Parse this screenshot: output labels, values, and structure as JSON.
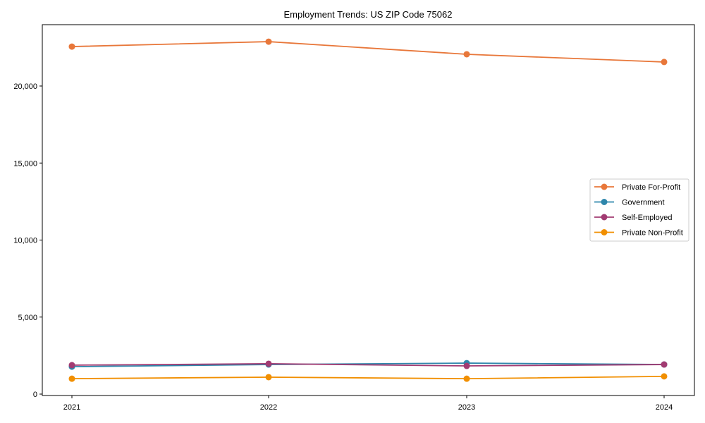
{
  "chart_data": {
    "type": "line",
    "title": "Employment Trends: US ZIP Code 75062",
    "xlabel": "",
    "ylabel": "",
    "x": [
      "2021",
      "2022",
      "2023",
      "2024"
    ],
    "ylim": [
      0,
      24000
    ],
    "yticks": [
      0,
      5000,
      10000,
      15000,
      20000
    ],
    "ytick_labels": [
      "0",
      "5,000",
      "10,000",
      "15,000",
      "20,000"
    ],
    "grid": false,
    "legend_position": "center right",
    "series": [
      {
        "name": "Private For-Profit",
        "color": "#E8773A",
        "values": [
          22560,
          22880,
          22060,
          21560
        ]
      },
      {
        "name": "Government",
        "color": "#2E86AB",
        "values": [
          1780,
          1920,
          2010,
          1920
        ]
      },
      {
        "name": "Self-Employed",
        "color": "#A23B72",
        "values": [
          1880,
          1970,
          1830,
          1920
        ]
      },
      {
        "name": "Private Non-Profit",
        "color": "#F18F01",
        "values": [
          1000,
          1100,
          1000,
          1150
        ]
      }
    ]
  }
}
